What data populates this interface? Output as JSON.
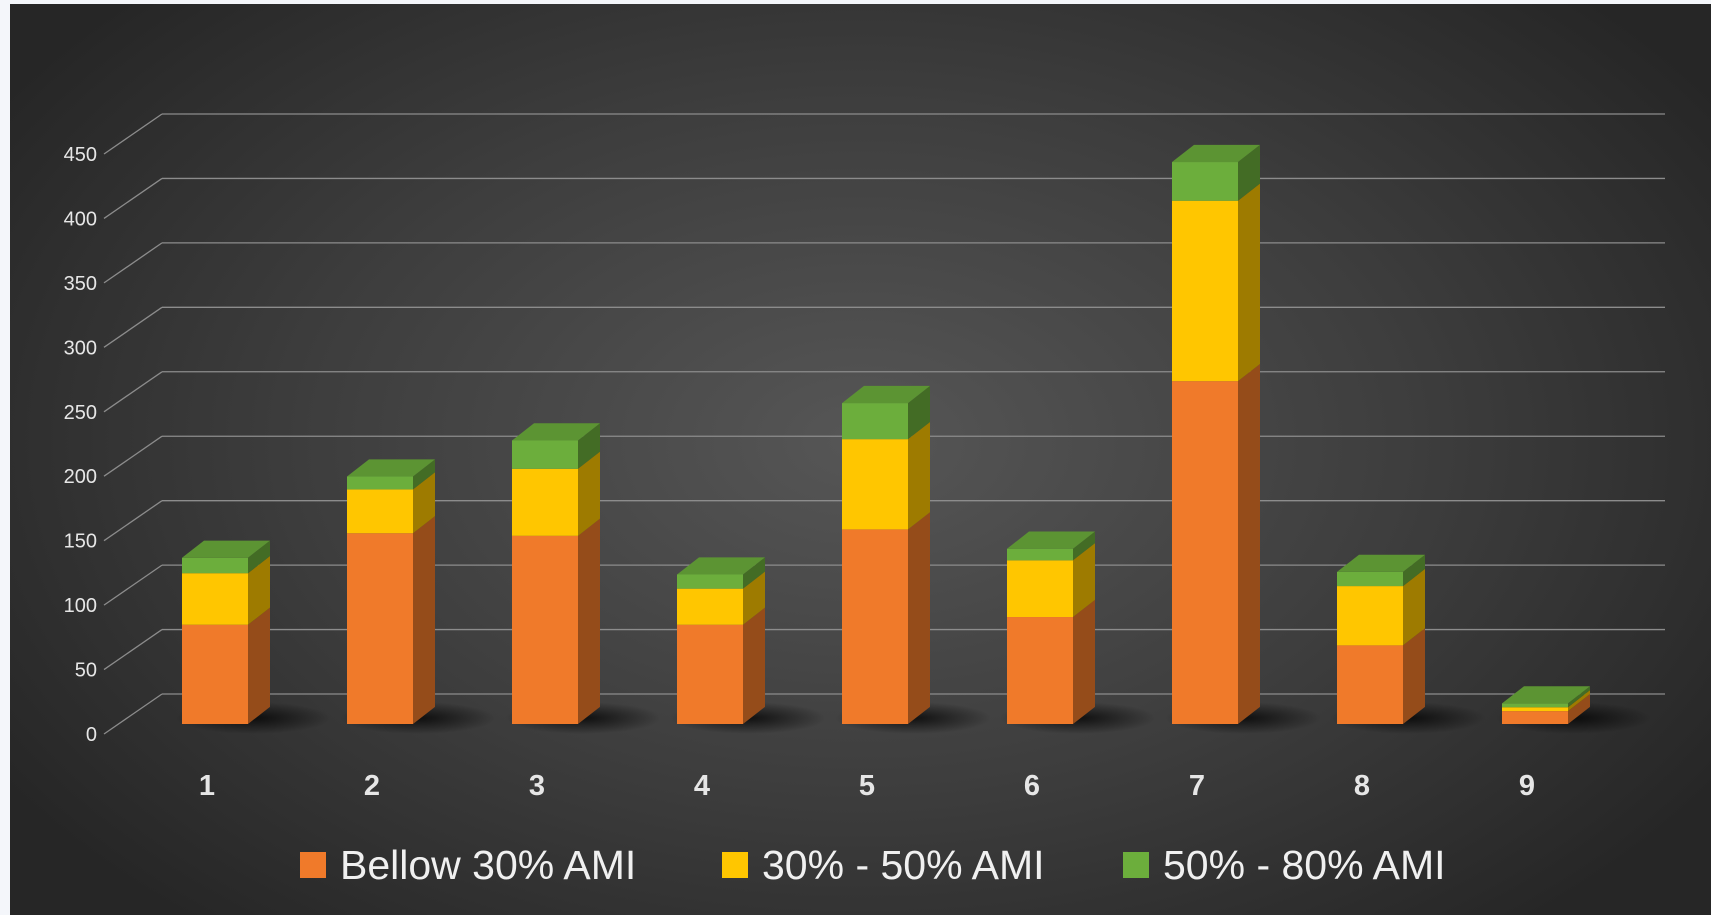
{
  "chart_data": {
    "type": "bar",
    "stacked": true,
    "style": "3d-column",
    "title": "",
    "xlabel": "",
    "ylabel": "",
    "categories": [
      "1",
      "2",
      "3",
      "4",
      "5",
      "6",
      "7",
      "8",
      "9"
    ],
    "series": [
      {
        "name": "Bellow 30% AMI",
        "color": "#f07a2a",
        "values": [
          77,
          148,
          146,
          77,
          151,
          83,
          266,
          61,
          10
        ]
      },
      {
        "name": "30% - 50% AMI",
        "color": "#ffc600",
        "values": [
          40,
          34,
          52,
          28,
          70,
          44,
          140,
          46,
          3
        ]
      },
      {
        "name": "50% - 80% AMI",
        "color": "#6cae3c",
        "values": [
          12,
          10,
          22,
          11,
          28,
          9,
          30,
          11,
          3
        ]
      }
    ],
    "y_ticks": [
      "0",
      "50",
      "100",
      "150",
      "200",
      "250",
      "300",
      "350",
      "400",
      "450"
    ],
    "ylim": [
      0,
      450
    ],
    "grid": true,
    "legend_position": "bottom"
  }
}
